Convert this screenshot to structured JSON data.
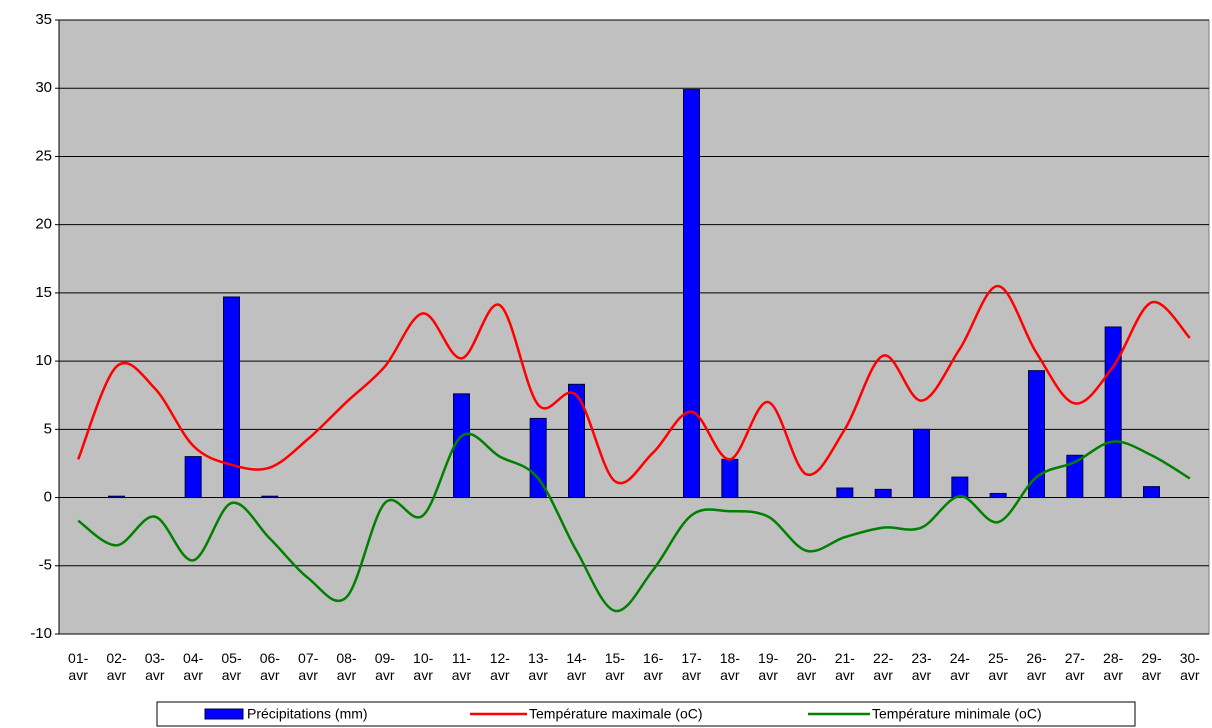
{
  "chart_data": {
    "type": "bar-line",
    "categories": [
      "01-avr",
      "02-avr",
      "03-avr",
      "04-avr",
      "05-avr",
      "06-avr",
      "07-avr",
      "08-avr",
      "09-avr",
      "10-avr",
      "11-avr",
      "12-avr",
      "13-avr",
      "14-avr",
      "15-avr",
      "16-avr",
      "17-avr",
      "18-avr",
      "19-avr",
      "20-avr",
      "21-avr",
      "22-avr",
      "23-avr",
      "24-avr",
      "25-avr",
      "26-avr",
      "27-avr",
      "28-avr",
      "29-avr",
      "30-avr"
    ],
    "series": [
      {
        "name": "Précipitations (mm)",
        "type": "bar",
        "color": "#0000ff",
        "values": [
          0,
          0.1,
          0,
          3,
          14.7,
          0.1,
          0,
          0,
          0,
          0,
          7.6,
          0,
          5.8,
          8.3,
          0,
          0,
          29.9,
          2.8,
          0,
          0,
          0.7,
          0.6,
          5,
          1.5,
          0.3,
          9.3,
          3.1,
          12.5,
          0.8,
          0
        ]
      },
      {
        "name": "Température maximale (oC)",
        "type": "line",
        "color": "#ff0000",
        "values": [
          2.8,
          9.6,
          8,
          3.8,
          2.4,
          2.2,
          4.3,
          7,
          9.6,
          13.5,
          10.2,
          14.1,
          6.8,
          7.5,
          1.2,
          3.3,
          6.3,
          2.8,
          7,
          1.7,
          5,
          10.4,
          7.1,
          10.9,
          15.5,
          10.6,
          6.9,
          9.6,
          14.3,
          11.7
        ]
      },
      {
        "name": "Température minimale (oC)",
        "type": "line",
        "color": "#008000",
        "values": [
          -1.7,
          -3.5,
          -1.4,
          -4.6,
          -0.4,
          -3,
          -5.9,
          -7.3,
          -0.4,
          -1.3,
          4.5,
          3,
          1.4,
          -3.9,
          -8.3,
          -5.3,
          -1.3,
          -1,
          -1.4,
          -3.9,
          -2.9,
          -2.2,
          -2.2,
          0.1,
          -1.8,
          1.5,
          2.6,
          4.1,
          3.1,
          1.4
        ]
      }
    ],
    "ylim": [
      -10,
      35
    ],
    "yticks": [
      -10,
      -5,
      0,
      5,
      10,
      15,
      20,
      25,
      30,
      35
    ],
    "grid": true,
    "legend": "bottom"
  }
}
